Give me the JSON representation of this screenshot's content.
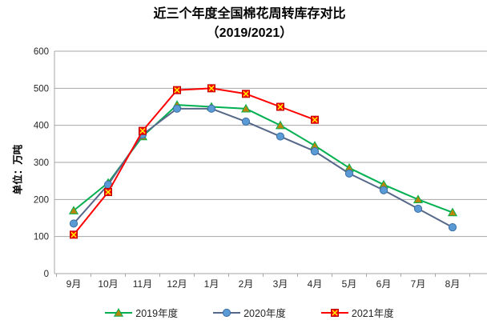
{
  "title": {
    "line1": "近三个年度全国棉花周转库存对比",
    "line2": "（2019/2021）"
  },
  "chart_data": {
    "type": "line",
    "title": "近三个年度全国棉花周转库存对比（2019/2021）",
    "ylabel": "单位：万吨",
    "xlabel": "",
    "ylim": [
      0,
      600
    ],
    "y_ticks": [
      0,
      100,
      200,
      300,
      400,
      500,
      600
    ],
    "grid": true,
    "legend_position": "bottom",
    "categories": [
      "9月",
      "10月",
      "11月",
      "12月",
      "1月",
      "2月",
      "3月",
      "4月",
      "5月",
      "6月",
      "7月",
      "8月"
    ],
    "series": [
      {
        "name": "2019年度",
        "marker": "triangle",
        "line_color": "#00B050",
        "marker_fill": "#B8860B",
        "marker_stroke": "#00B050",
        "values": [
          170,
          245,
          370,
          455,
          450,
          445,
          400,
          345,
          285,
          240,
          200,
          165
        ]
      },
      {
        "name": "2020年度",
        "marker": "circle",
        "line_color": "#56688A",
        "marker_fill": "#5B9BD5",
        "marker_stroke": "#3A6FA5",
        "values": [
          135,
          240,
          375,
          445,
          445,
          410,
          370,
          330,
          270,
          225,
          175,
          125
        ]
      },
      {
        "name": "2021年度",
        "marker": "square-x",
        "line_color": "#FE0000",
        "marker_fill": "#FE0000",
        "marker_stroke": "#C00000",
        "x_color": "#FFFF00",
        "values": [
          105,
          220,
          385,
          495,
          500,
          485,
          450,
          415,
          null,
          null,
          null,
          null
        ]
      }
    ],
    "colors": {
      "grid": "#A6A6A6",
      "axis_text": "#262626",
      "title_text": "#000000"
    }
  }
}
